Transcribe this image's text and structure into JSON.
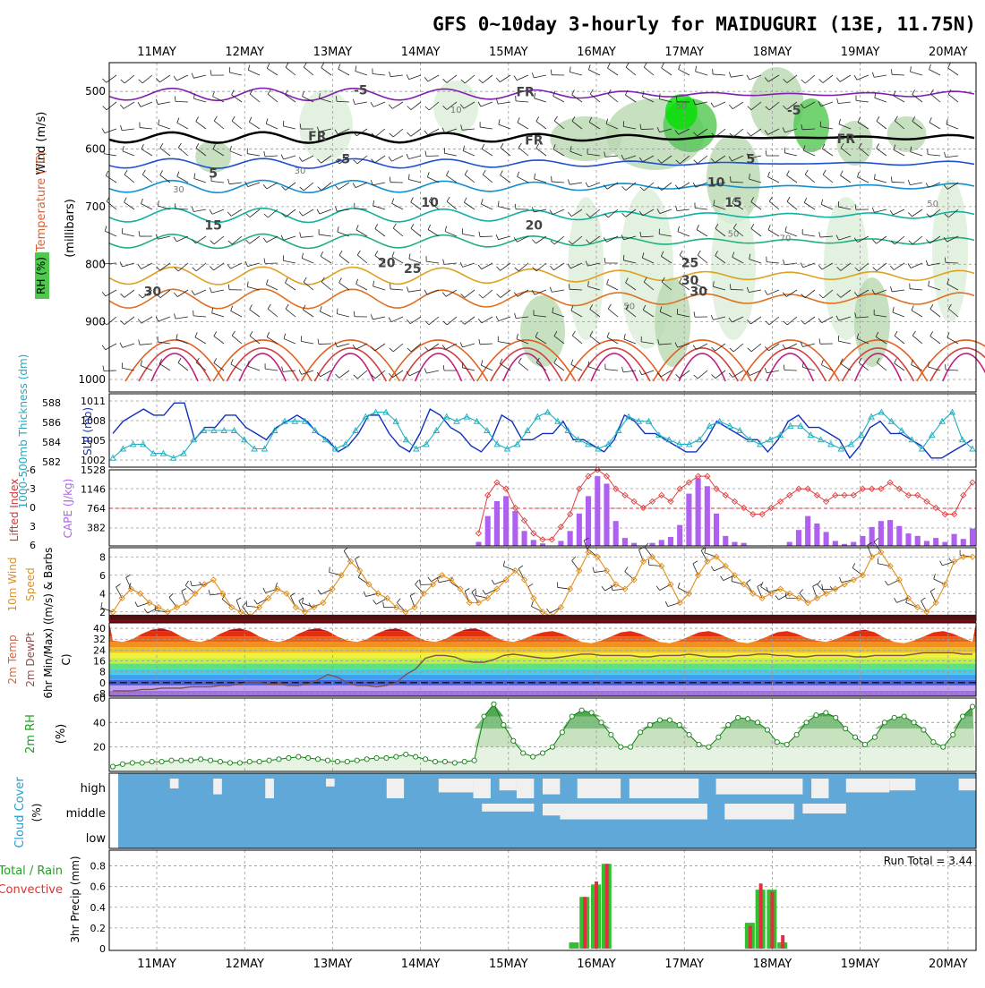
{
  "title": "GFS 0~10day 3-hourly for MAIDUGURI (13E, 11.75N)",
  "days": [
    "11MAY",
    "12MAY",
    "13MAY",
    "14MAY",
    "15MAY",
    "16MAY",
    "17MAY",
    "18MAY",
    "19MAY",
    "20MAY"
  ],
  "colors": {
    "grid": "#999999",
    "temp_warm": "#e07020",
    "temp_cool": "#20a080",
    "temp_cold": "#2050d0",
    "freezing": "#000000",
    "rh_light": "#dcefd8",
    "rh_mid": "#b8d8b0",
    "rh_high": "#50c850",
    "rh_max": "#00e000"
  },
  "chart_data": [
    {
      "type": "contour",
      "panel": "upper-air",
      "ylabel_parts": [
        "Wind (m/s)",
        "Temperature (°C)",
        "RH (%)"
      ],
      "ylabel_units": "(millibars)",
      "yticks": [
        "500",
        "600",
        "700",
        "800",
        "900",
        "1000"
      ],
      "ylim": [
        1000,
        450
      ],
      "isotherm_labels": [
        "-5",
        "FR",
        "FR",
        "FR",
        "FR",
        "-5",
        "-5",
        "5",
        "5",
        "10",
        "10",
        "15",
        "15",
        "20",
        "20",
        "25",
        "25",
        "30",
        "30",
        "30"
      ],
      "rh_labels": [
        "10",
        "30",
        "30",
        "50",
        "50",
        "50",
        "50",
        "70"
      ]
    },
    {
      "type": "line",
      "panel": "slp-thickness",
      "ylabel_left": "1000-500mb Thickness (dm)",
      "ylabel_right": "SLP (mb)",
      "yticks_left": [
        "588",
        "586",
        "584",
        "582"
      ],
      "yticks_right": [
        "1011",
        "1008",
        "1005",
        "1002"
      ],
      "series": [
        {
          "name": "SLP (mb)",
          "values": [
            1006,
            1008,
            1009,
            1010,
            1009,
            1009,
            1011,
            1011,
            1005,
            1007,
            1007,
            1009,
            1009,
            1007,
            1006,
            1005,
            1007,
            1008,
            1009,
            1008,
            1006,
            1005,
            1003,
            1004,
            1006,
            1009,
            1009,
            1006,
            1004,
            1003,
            1006,
            1010,
            1009,
            1007,
            1006,
            1004,
            1003,
            1005,
            1009,
            1008,
            1005,
            1005,
            1006,
            1006,
            1008,
            1005,
            1005,
            1004,
            1003,
            1005,
            1009,
            1008,
            1006,
            1006,
            1005,
            1004,
            1003,
            1003,
            1005,
            1008,
            1007,
            1006,
            1005,
            1005,
            1003,
            1005,
            1008,
            1009,
            1007,
            1007,
            1006,
            1005,
            1002,
            1004,
            1007,
            1008,
            1006,
            1006,
            1005,
            1004,
            1002,
            1002,
            1003,
            1004,
            1005
          ]
        },
        {
          "name": "1000-500mb Thickness (dm)",
          "values": [
            582,
            583,
            583.5,
            583.5,
            582.5,
            582.5,
            582,
            582.5,
            584,
            585,
            585,
            585,
            585,
            584,
            583,
            583,
            585,
            586,
            586,
            586,
            585,
            584,
            583,
            583.5,
            585,
            586.5,
            587,
            587,
            586,
            584,
            583,
            583.5,
            585,
            586.5,
            586,
            586.5,
            586,
            585,
            583.5,
            583,
            583.5,
            585,
            586.5,
            587,
            586,
            585,
            584,
            583.5,
            583,
            583.5,
            585,
            586.5,
            586,
            586,
            584.5,
            584,
            583.5,
            583.5,
            584,
            585.5,
            586,
            585.5,
            585,
            584,
            583.5,
            584,
            584.5,
            585.5,
            585.5,
            584.5,
            584,
            583.5,
            583,
            583.5,
            584.5,
            586.5,
            587,
            586,
            585,
            584,
            583,
            584.5,
            586,
            587,
            584,
            583
          ]
        }
      ]
    },
    {
      "type": "bar",
      "panel": "cape-li",
      "ylabel_left": "Lifted Index",
      "ylabel_right": "CAPE (J/kg)",
      "yticks_left": [
        "-6",
        "-3",
        "0",
        "3",
        "6"
      ],
      "yticks_right": [
        "1528",
        "1146",
        "764",
        "382"
      ],
      "series": [
        {
          "name": "CAPE (J/kg)",
          "values": [
            0,
            0,
            0,
            0,
            0,
            0,
            0,
            0,
            0,
            0,
            0,
            0,
            0,
            0,
            0,
            0,
            0,
            0,
            0,
            0,
            0,
            0,
            0,
            0,
            0,
            0,
            0,
            0,
            0,
            0,
            0,
            0,
            0,
            0,
            0,
            0,
            0,
            0,
            0,
            0,
            80,
            600,
            900,
            1000,
            700,
            300,
            120,
            50,
            0,
            100,
            300,
            650,
            1000,
            1400,
            1250,
            500,
            160,
            60,
            0,
            60,
            120,
            180,
            420,
            1050,
            1360,
            1200,
            650,
            200,
            80,
            60,
            0,
            0,
            0,
            0,
            80,
            320,
            600,
            450,
            280,
            100,
            40,
            80,
            200,
            380,
            500,
            520,
            400,
            250,
            200,
            100,
            160,
            80,
            240,
            140,
            350
          ]
        },
        {
          "name": "Lifted Index",
          "values": [
            null,
            null,
            null,
            null,
            null,
            null,
            null,
            null,
            null,
            null,
            null,
            null,
            null,
            null,
            null,
            null,
            null,
            null,
            null,
            null,
            null,
            null,
            null,
            null,
            null,
            null,
            null,
            null,
            null,
            null,
            null,
            null,
            null,
            null,
            null,
            null,
            null,
            null,
            null,
            null,
            4,
            -2,
            -4,
            -3,
            0,
            2,
            4,
            5,
            5,
            3,
            1,
            -3,
            -5,
            -6,
            -5,
            -3,
            -2,
            -1,
            0,
            -1,
            -2,
            -1,
            -3,
            -4,
            -5,
            -5,
            -3,
            -2,
            -1,
            0,
            1,
            1,
            0,
            -1,
            -2,
            -3,
            -3,
            -2,
            -1,
            -2,
            -2,
            -2,
            -3,
            -3,
            -3,
            -4,
            -3,
            -2,
            -2,
            -1,
            0,
            1,
            1,
            -2,
            -4
          ]
        }
      ]
    },
    {
      "type": "line",
      "panel": "wind10m",
      "ylabel": "10m Wind Speed (m/s) & Barbs",
      "yticks": [
        "8",
        "6",
        "4",
        "2"
      ],
      "ylim": [
        1,
        9
      ],
      "series": [
        {
          "name": "10m Wind Speed",
          "values": [
            2,
            3.5,
            4.5,
            4,
            3,
            2.5,
            2,
            2.5,
            3,
            4,
            5,
            5.5,
            4,
            2.5,
            2,
            1.5,
            2.5,
            3.5,
            4.5,
            4,
            2.5,
            2,
            2.5,
            3,
            4.5,
            6,
            7.5,
            6.5,
            5,
            4,
            3.5,
            2.5,
            2,
            2.5,
            4,
            5,
            6,
            5.5,
            4.5,
            3,
            3,
            3.5,
            4.5,
            5.5,
            6.5,
            5.5,
            3.5,
            2,
            1.5,
            2.5,
            4.5,
            6.5,
            8.5,
            8,
            6.5,
            5,
            4.5,
            5.5,
            7.5,
            8,
            7,
            5,
            3,
            4,
            6,
            7.5,
            8,
            7,
            6,
            5,
            4,
            3.5,
            4,
            4.5,
            4,
            3.5,
            3,
            3.5,
            4,
            4.5,
            5,
            5.5,
            6,
            8,
            8.5,
            7,
            5.5,
            3.5,
            2.5,
            2,
            3,
            5,
            7.5,
            8,
            8
          ]
        }
      ]
    },
    {
      "type": "area",
      "panel": "temp2m",
      "ylabel": "2m Temp 2m DewPt (6hr Min/Max) (°C)",
      "yticks": [
        "40",
        "32",
        "24",
        "16",
        "8",
        "0",
        "-8"
      ],
      "ylim": [
        -10,
        44
      ],
      "series": [
        {
          "name": "2m Temp",
          "values": [
            31,
            30,
            32,
            36,
            39,
            40,
            38,
            34,
            31,
            30,
            32,
            36,
            39,
            40,
            38,
            34,
            31,
            30,
            32,
            36,
            39,
            40,
            38,
            34,
            31,
            30,
            32,
            36,
            39,
            40,
            38,
            34,
            31,
            30,
            32,
            36,
            39,
            40,
            38,
            34,
            31,
            30,
            32,
            35,
            37,
            38,
            36,
            33,
            30,
            29,
            31,
            34,
            37,
            38,
            36,
            33,
            30,
            29,
            31,
            34,
            37,
            38,
            36,
            33,
            30,
            29,
            31,
            34,
            37,
            38,
            36,
            33,
            31,
            30,
            32,
            35,
            38,
            39,
            37,
            33,
            30,
            29,
            31,
            34,
            37,
            38,
            36,
            33,
            30
          ]
        },
        {
          "name": "2m DewPt",
          "values": [
            -6,
            -6,
            -6,
            -5,
            -5,
            -4,
            -4,
            -4,
            -3,
            -3,
            -3,
            -2,
            -2,
            -1,
            0,
            0,
            -1,
            -1,
            -2,
            -2,
            -1,
            2,
            6,
            4,
            0,
            -2,
            -2,
            -3,
            -2,
            0,
            6,
            10,
            18,
            20,
            20,
            19,
            16,
            15,
            15,
            17,
            20,
            21,
            20,
            19,
            18,
            18,
            19,
            20,
            21,
            21,
            20,
            20,
            20,
            20,
            19,
            19,
            20,
            20,
            20,
            21,
            20,
            19,
            19,
            19,
            20,
            20,
            21,
            21,
            20,
            20,
            19,
            19,
            20,
            20,
            20,
            20,
            19,
            19,
            20,
            20,
            20,
            20,
            21,
            22,
            22,
            22,
            22,
            21,
            21
          ]
        }
      ]
    },
    {
      "type": "area",
      "panel": "rh2m",
      "ylabel": "2m RH (%)",
      "yticks": [
        "60",
        "40",
        "20"
      ],
      "ylim": [
        0,
        60
      ],
      "series": [
        {
          "name": "2m RH",
          "values": [
            4,
            6,
            7,
            7,
            8,
            8,
            9,
            9,
            9,
            10,
            9,
            8,
            7,
            7,
            8,
            8,
            9,
            10,
            11,
            12,
            11,
            10,
            9,
            8,
            8,
            9,
            10,
            11,
            11,
            12,
            14,
            12,
            10,
            8,
            8,
            7,
            8,
            9,
            45,
            55,
            38,
            25,
            15,
            12,
            15,
            20,
            32,
            45,
            50,
            48,
            40,
            30,
            20,
            20,
            32,
            38,
            42,
            42,
            38,
            30,
            22,
            20,
            28,
            38,
            44,
            43,
            40,
            34,
            24,
            22,
            30,
            40,
            46,
            48,
            44,
            35,
            28,
            22,
            28,
            40,
            44,
            45,
            40,
            34,
            24,
            20,
            30,
            45,
            53
          ]
        }
      ]
    },
    {
      "type": "heatmap",
      "panel": "cloud",
      "ylabel": "Cloud Cover (%)",
      "levels": [
        "high",
        "middle",
        "low"
      ]
    },
    {
      "type": "bar",
      "panel": "precip",
      "ylabel_left": "Total / Rain Convective",
      "ylabel_units": "3hr Precip (mm)",
      "yticks": [
        "0.8",
        "0.6",
        "0.4",
        "0.2",
        "0"
      ],
      "ylim": [
        0,
        0.9
      ],
      "annotation": "Run Total = 3.44",
      "series": [
        {
          "name": "Total",
          "x": [
            15.75,
            15.87,
            16.0,
            16.12,
            17.75,
            17.87,
            18.0,
            18.12
          ],
          "values": [
            0.06,
            0.5,
            0.62,
            0.82,
            0.25,
            0.57,
            0.57,
            0.06
          ]
        },
        {
          "name": "Convective",
          "x": [
            15.75,
            15.87,
            16.0,
            16.12,
            17.75,
            17.87,
            18.0,
            18.12
          ],
          "values": [
            0.0,
            0.5,
            0.65,
            0.82,
            0.22,
            0.63,
            0.55,
            0.13
          ]
        }
      ]
    }
  ]
}
